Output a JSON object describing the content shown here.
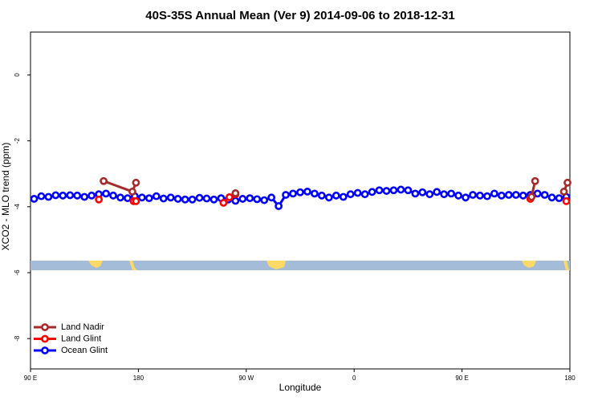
{
  "chart_data": {
    "type": "line",
    "title": "40S-35S Annual Mean (Ver 9)   2014-09-06 to 2018-12-31",
    "x_label": "Longitude",
    "y_label": "XCO2 - MLO trend (ppm)",
    "xlim": [
      90,
      540
    ],
    "ylim": [
      -8.92,
      1.3
    ],
    "xticks": [
      {
        "value": 90,
        "label": "90 E"
      },
      {
        "value": 180,
        "label": "180"
      },
      {
        "value": 270,
        "label": "90 W"
      },
      {
        "value": 360,
        "label": "0"
      },
      {
        "value": 450,
        "label": "90 E"
      },
      {
        "value": 540,
        "label": "180"
      }
    ],
    "yticks": [
      0,
      -2,
      -4,
      -6,
      -8
    ],
    "legend": "bottom-left",
    "series": [
      {
        "name": "Ocean Glint",
        "color": "#0000ff",
        "x": [
          93,
          99,
          105,
          111,
          117,
          123,
          129,
          135,
          141,
          147,
          153,
          159,
          165,
          171,
          177,
          183,
          189,
          195,
          201,
          207,
          213,
          219,
          225,
          231,
          237,
          243,
          249,
          255,
          261,
          267,
          273,
          279,
          285,
          291,
          297,
          303,
          309,
          315,
          321,
          327,
          333,
          339,
          345,
          351,
          357,
          363,
          369,
          375,
          381,
          387,
          393,
          399,
          405,
          411,
          417,
          423,
          429,
          435,
          441,
          447,
          453,
          459,
          465,
          471,
          477,
          483,
          489,
          495,
          501,
          507,
          513,
          519,
          525,
          531,
          537
        ],
        "values": [
          -3.76,
          -3.68,
          -3.7,
          -3.65,
          -3.66,
          -3.65,
          -3.66,
          -3.7,
          -3.66,
          -3.62,
          -3.6,
          -3.66,
          -3.72,
          -3.74,
          -3.68,
          -3.72,
          -3.74,
          -3.68,
          -3.75,
          -3.72,
          -3.76,
          -3.78,
          -3.78,
          -3.73,
          -3.75,
          -3.78,
          -3.74,
          -3.78,
          -3.82,
          -3.76,
          -3.74,
          -3.77,
          -3.8,
          -3.72,
          -3.98,
          -3.64,
          -3.6,
          -3.56,
          -3.54,
          -3.6,
          -3.66,
          -3.72,
          -3.66,
          -3.7,
          -3.62,
          -3.58,
          -3.62,
          -3.55,
          -3.5,
          -3.52,
          -3.5,
          -3.48,
          -3.5,
          -3.6,
          -3.56,
          -3.62,
          -3.55,
          -3.62,
          -3.6,
          -3.66,
          -3.72,
          -3.64,
          -3.66,
          -3.68,
          -3.6,
          -3.66,
          -3.64,
          -3.64,
          -3.66,
          -3.64,
          -3.6,
          -3.64,
          -3.72,
          -3.74,
          -3.7
        ]
      },
      {
        "name": "Land Glint",
        "color": "#ff0000",
        "x": [
          147,
          null,
          176,
          178,
          null,
          251,
          256,
          261,
          null,
          507,
          null,
          537
        ],
        "values": [
          -3.78,
          null,
          -3.83,
          -3.83,
          null,
          -3.88,
          -3.71,
          -3.62,
          null,
          -3.76,
          null,
          -3.83
        ]
      },
      {
        "name": "Land Nadir",
        "color": "#a52a2a",
        "x": [
          151,
          175,
          178,
          null,
          261,
          null,
          508,
          511,
          null,
          535,
          538
        ],
        "values": [
          -3.22,
          -3.54,
          -3.27,
          null,
          -3.59,
          null,
          -3.7,
          -3.22,
          null,
          -3.54,
          -3.27
        ]
      }
    ]
  }
}
